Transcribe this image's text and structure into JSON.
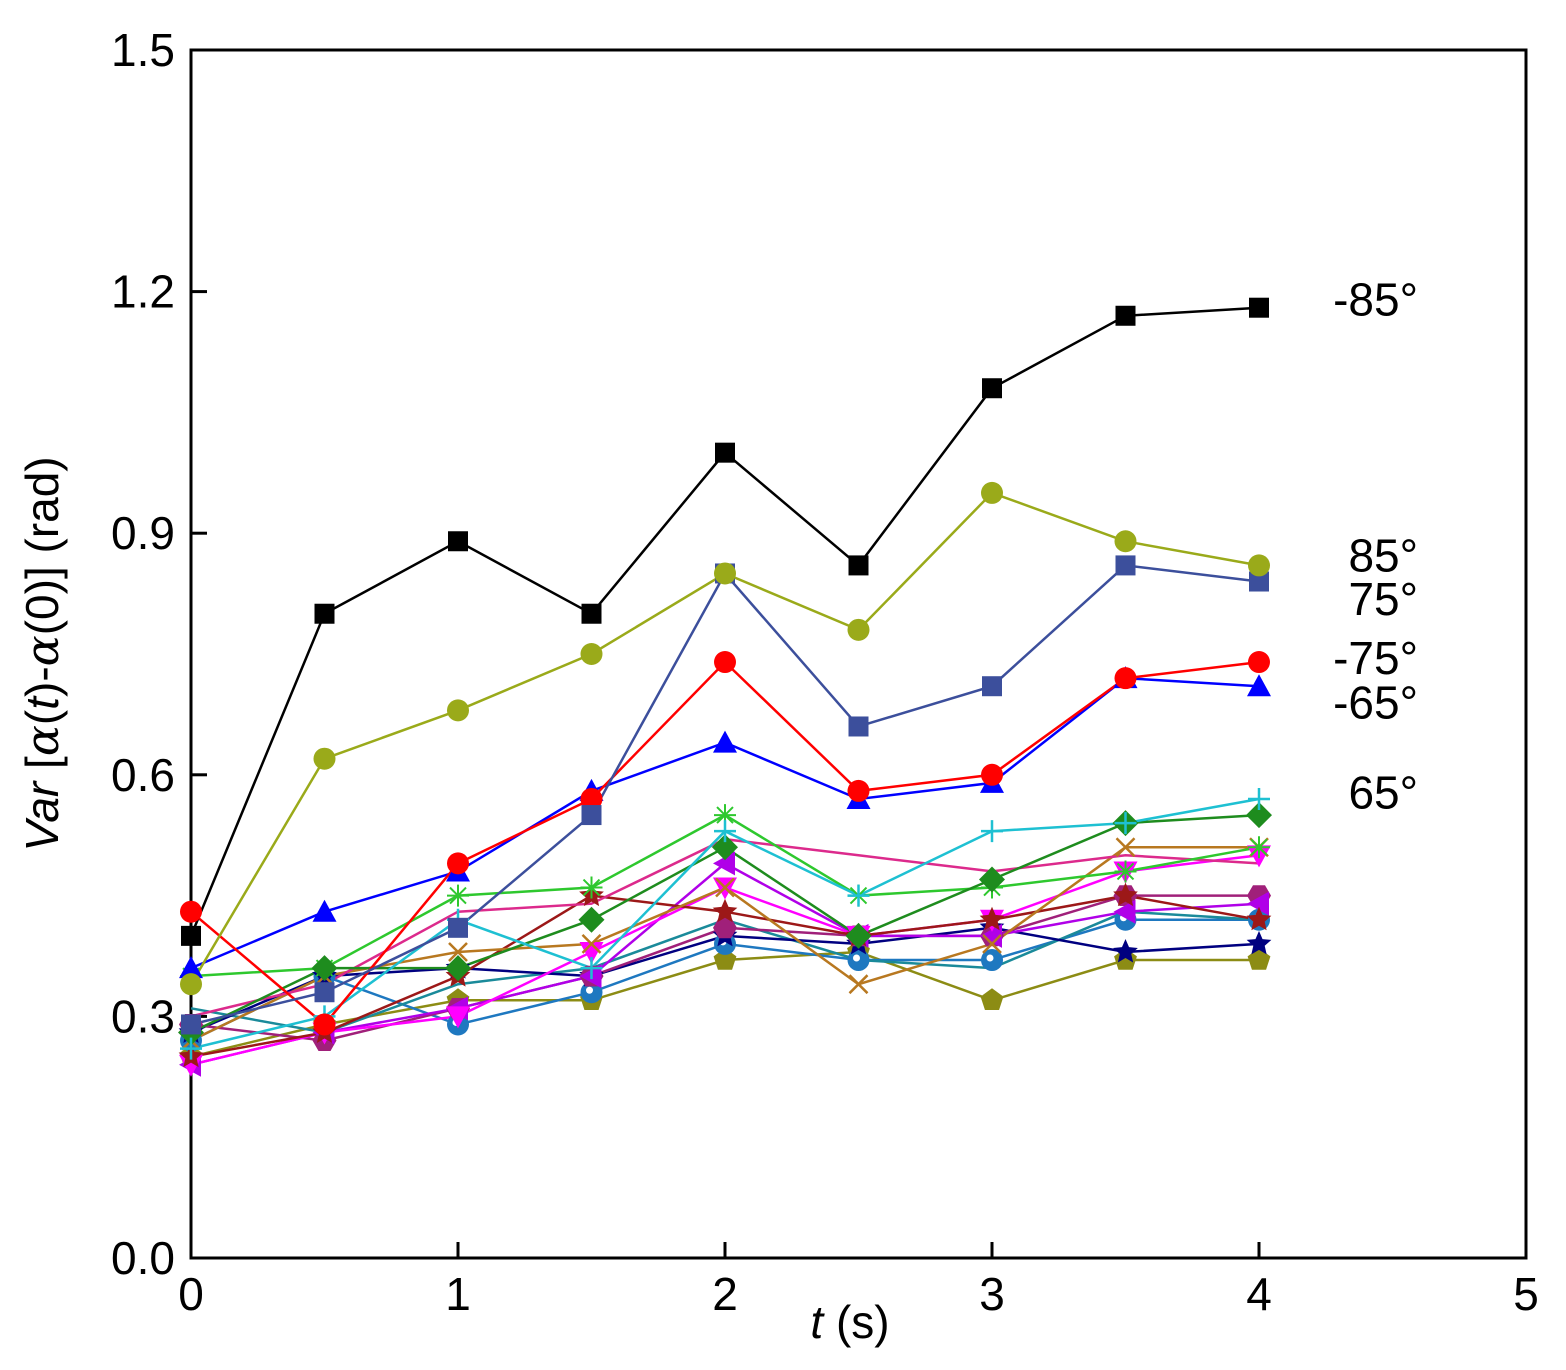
{
  "chart_data": {
    "type": "line",
    "title": "",
    "xlabel_italic": "t",
    "xlabel_rest": " (s)",
    "ylabel_italic": "Var",
    "ylabel_parts": [
      " [",
      "α",
      "(",
      "t",
      ")-",
      "α",
      "(0)] (rad)"
    ],
    "xlim": [
      0,
      5
    ],
    "ylim": [
      0,
      1.5
    ],
    "xticks": [
      0,
      1,
      2,
      3,
      4,
      5
    ],
    "xtick_labels": [
      "0",
      "1",
      "2",
      "3",
      "4",
      "5"
    ],
    "yticks": [
      0,
      0.3,
      0.6,
      0.9,
      1.2,
      1.5
    ],
    "ytick_labels": [
      "0.0",
      "0.3",
      "0.6",
      "0.9",
      "1.2",
      "1.5"
    ],
    "x": [
      0,
      0.5,
      1,
      1.5,
      2,
      2.5,
      3,
      3.5,
      4
    ],
    "series": [
      {
        "name": "-85°",
        "label": "-85°",
        "color": "#000000",
        "marker": "square",
        "values": [
          0.4,
          0.8,
          0.89,
          0.8,
          1.0,
          0.86,
          1.08,
          1.17,
          1.18
        ]
      },
      {
        "name": "85°",
        "label": "85°",
        "color": "#9aaa1a",
        "marker": "circle",
        "values": [
          0.34,
          0.62,
          0.68,
          0.75,
          0.85,
          0.78,
          0.95,
          0.89,
          0.86
        ]
      },
      {
        "name": "75°",
        "label": "75°",
        "color": "#3c4f9c",
        "marker": "square",
        "values": [
          0.29,
          0.33,
          0.41,
          0.55,
          0.85,
          0.66,
          0.71,
          0.86,
          0.84
        ]
      },
      {
        "name": "-75°",
        "label": "-75°",
        "color": "#ff0000",
        "marker": "circle",
        "values": [
          0.43,
          0.29,
          0.49,
          0.57,
          0.74,
          0.58,
          0.6,
          0.72,
          0.74
        ]
      },
      {
        "name": "-65°",
        "label": "-65°",
        "color": "#0000ff",
        "marker": "triangle",
        "values": [
          0.36,
          0.43,
          0.48,
          0.58,
          0.64,
          0.57,
          0.59,
          0.72,
          0.71
        ]
      },
      {
        "name": "65°",
        "label": "65°",
        "color": "#1ec0d2",
        "marker": "plus",
        "values": [
          0.26,
          0.3,
          0.42,
          0.36,
          0.53,
          0.45,
          0.53,
          0.54,
          0.57
        ]
      },
      {
        "name": "",
        "color": "#1e8c1e",
        "marker": "diamond",
        "values": [
          0.28,
          0.36,
          0.36,
          0.42,
          0.51,
          0.4,
          0.47,
          0.54,
          0.55
        ]
      },
      {
        "name": "",
        "color": "#2ec82e",
        "marker": "asterisk",
        "values": [
          0.35,
          0.36,
          0.45,
          0.46,
          0.55,
          0.45,
          0.46,
          0.48,
          0.51
        ]
      },
      {
        "name": "",
        "color": "#dc2a8c",
        "marker": "none",
        "values": [
          0.3,
          0.34,
          0.43,
          0.44,
          0.52,
          0.5,
          0.48,
          0.5,
          0.49
        ]
      },
      {
        "name": "",
        "color": "#b87820",
        "marker": "cross",
        "values": [
          0.27,
          0.35,
          0.38,
          0.39,
          0.46,
          0.34,
          0.39,
          0.51,
          0.51
        ]
      },
      {
        "name": "",
        "color": "#9c1818",
        "marker": "star",
        "values": [
          0.25,
          0.28,
          0.35,
          0.45,
          0.43,
          0.4,
          0.42,
          0.45,
          0.42
        ]
      },
      {
        "name": "",
        "color": "#ff00ff",
        "marker": "triangle-down",
        "values": [
          0.24,
          0.28,
          0.3,
          0.38,
          0.46,
          0.4,
          0.42,
          0.48,
          0.5
        ]
      },
      {
        "name": "",
        "color": "#b000e8",
        "marker": "triangle-left",
        "values": [
          0.24,
          0.28,
          0.31,
          0.35,
          0.49,
          0.4,
          0.4,
          0.43,
          0.44
        ]
      },
      {
        "name": "",
        "color": "#a0207a",
        "marker": "hexagon",
        "values": [
          0.29,
          0.27,
          0.31,
          0.35,
          0.41,
          0.4,
          0.4,
          0.45,
          0.45
        ]
      },
      {
        "name": "",
        "color": "#000080",
        "marker": "star",
        "values": [
          0.28,
          0.35,
          0.36,
          0.35,
          0.4,
          0.39,
          0.41,
          0.38,
          0.39
        ]
      },
      {
        "name": "",
        "color": "#1a8a9a",
        "marker": "none",
        "values": [
          0.31,
          0.28,
          0.34,
          0.36,
          0.42,
          0.37,
          0.36,
          0.43,
          0.42
        ]
      },
      {
        "name": "",
        "color": "#1e78c0",
        "marker": "dotcircle",
        "values": [
          0.27,
          0.35,
          0.29,
          0.33,
          0.39,
          0.37,
          0.37,
          0.42,
          0.42
        ]
      },
      {
        "name": "",
        "color": "#8c8c14",
        "marker": "pentagon",
        "values": [
          0.25,
          0.29,
          0.32,
          0.32,
          0.37,
          0.38,
          0.32,
          0.37,
          0.37
        ]
      }
    ]
  }
}
